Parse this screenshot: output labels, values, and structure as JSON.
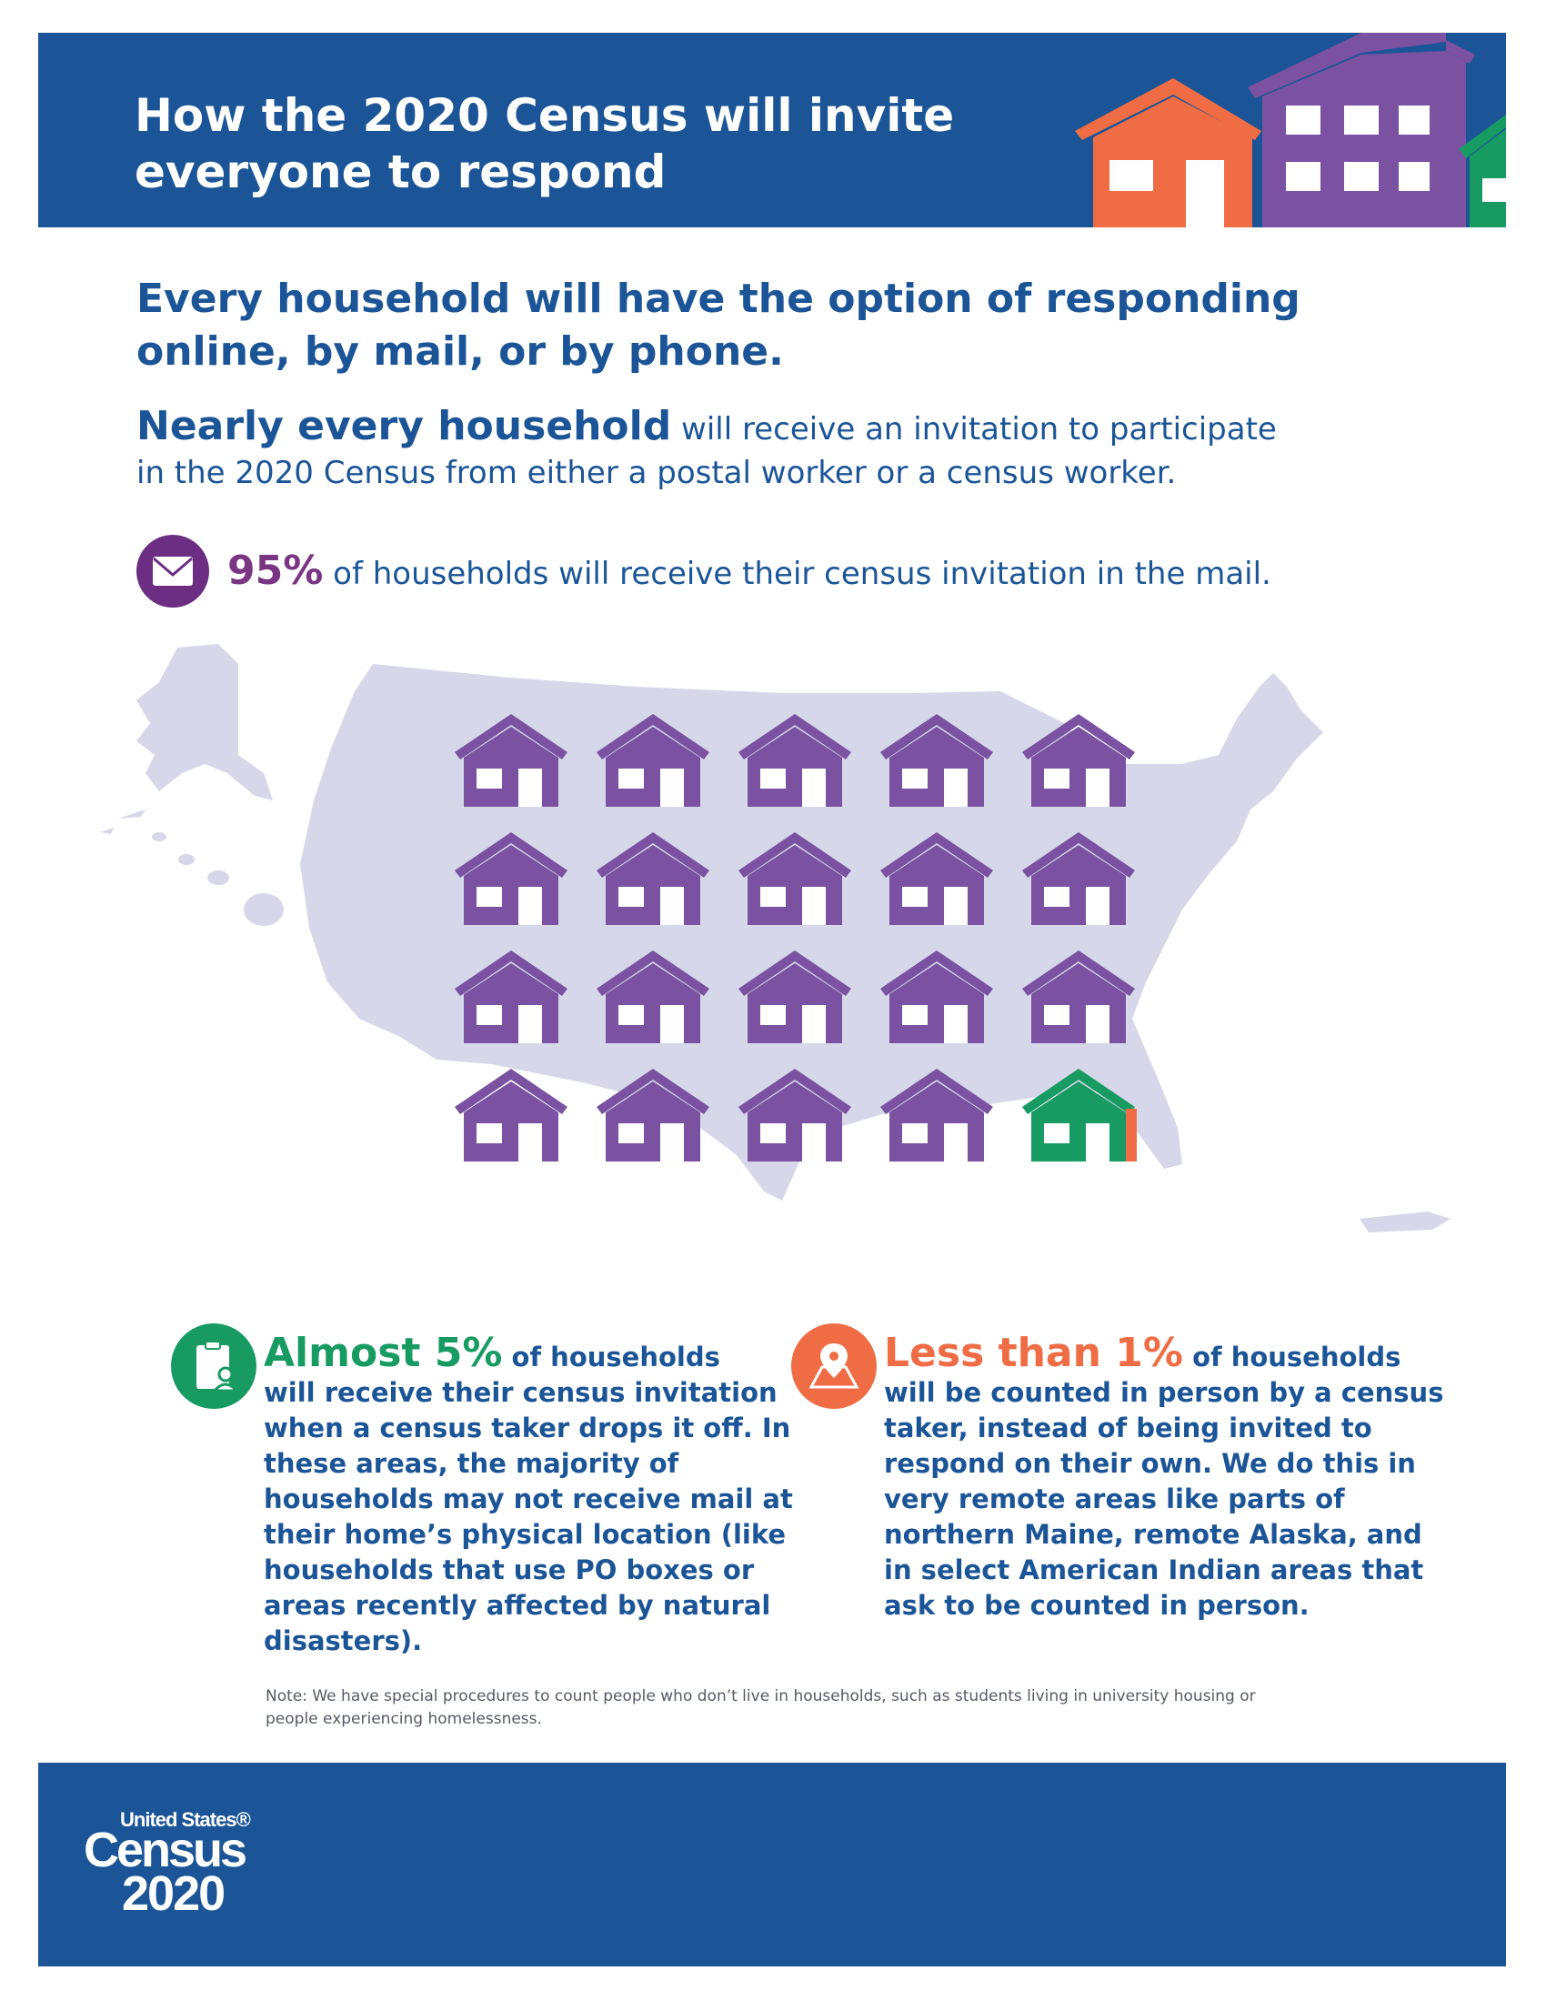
{
  "header": {
    "title_line1": "How the 2020 Census will invite",
    "title_line2": "everyone to respond"
  },
  "headline": {
    "line1": "Every household will have the option of responding",
    "line2": "online, by mail, or by phone."
  },
  "intro": {
    "lead": "Nearly every household",
    "rest_line1": " will receive an invitation to participate",
    "line2": "in the 2020 Census from either a postal worker or a census worker."
  },
  "mail_stat": {
    "icon": "envelope-icon",
    "percent": "95%",
    "text": " of households will receive their census invitation in the mail."
  },
  "house_grid": {
    "total": 20,
    "mail_houses": 19,
    "drop_off_houses": 1,
    "in_person_sliver": true
  },
  "drop_off_stat": {
    "icon": "clipboard-person-icon",
    "lead": "Almost 5%",
    "lead_suffix": " of households",
    "body": "will receive their census invitation when a census taker drops it off. In these areas, the majority of households may not receive mail at their home’s physical location (like households that use PO boxes or areas recently affected by natural disasters)."
  },
  "in_person_stat": {
    "icon": "map-pin-icon",
    "lead": "Less than 1%",
    "lead_suffix": " of households",
    "body": "will be counted in person by a census taker, instead of being invited to respond on their own. We do this in very remote areas like parts of northern Maine, remote Alaska, and in select American Indian areas that ask to be counted in person."
  },
  "note": "Note: We have special procedures to count people who don’t live in households, such as students living in university housing or people experiencing homelessness.",
  "footer": {
    "logo_top": "United States®",
    "logo_middle": "Census",
    "logo_bottom": "2020"
  },
  "colors": {
    "navy": "#1b5597",
    "purple": "#7a52a1",
    "green": "#179b62",
    "orange": "#ef6c44",
    "map": "#d6d8ea"
  }
}
